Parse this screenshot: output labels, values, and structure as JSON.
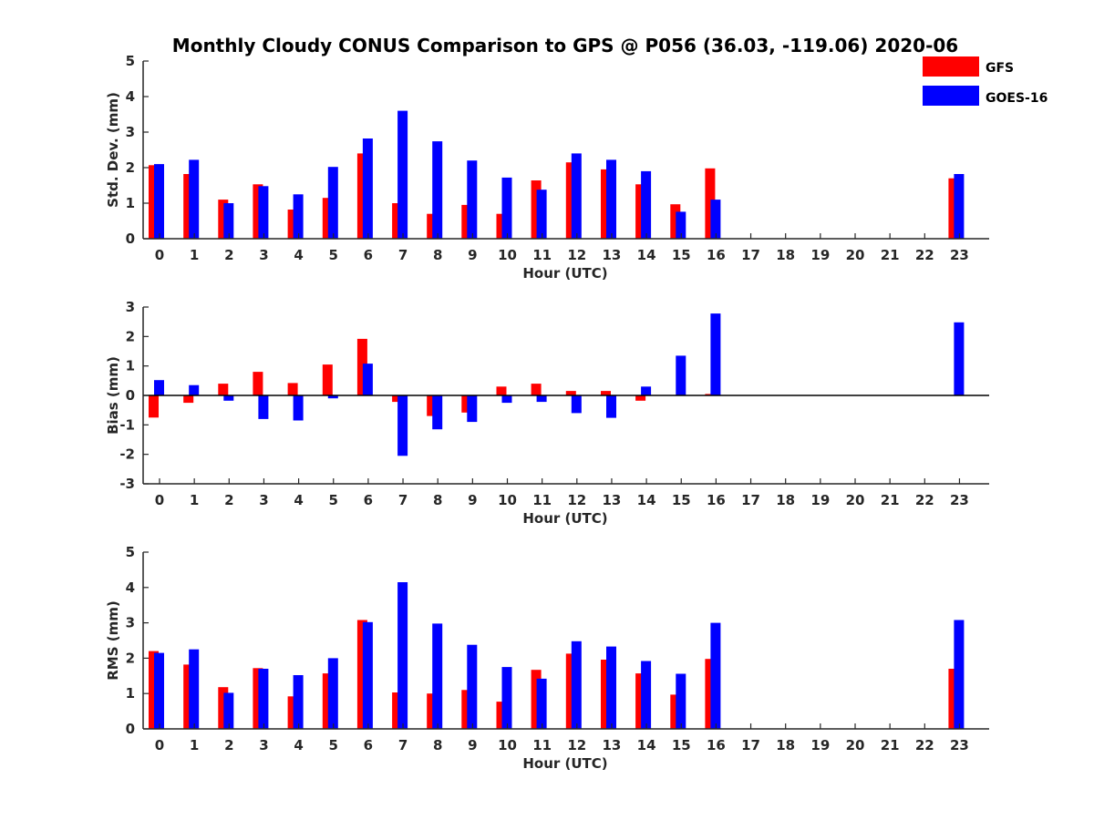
{
  "title": "Monthly Cloudy CONUS Comparison to GPS @ P056 (36.03, -119.06) 2020-06",
  "legend": [
    {
      "name": "GFS",
      "color": "#ff0000"
    },
    {
      "name": "GOES-16",
      "color": "#0000ff"
    }
  ],
  "chart_data": [
    {
      "type": "bar",
      "categories": [
        "0",
        "1",
        "2",
        "3",
        "4",
        "5",
        "6",
        "7",
        "8",
        "9",
        "10",
        "11",
        "12",
        "13",
        "14",
        "15",
        "16",
        "17",
        "18",
        "19",
        "20",
        "21",
        "22",
        "23"
      ],
      "xlabel": "Hour (UTC)",
      "ylabel": "Std. Dev. (mm)",
      "ylim": [
        0,
        5
      ],
      "yticks": [
        "0",
        "1",
        "2",
        "3",
        "4",
        "5"
      ],
      "legend_position": "top-right",
      "series": [
        {
          "name": "GFS",
          "color": "#ff0000",
          "values": [
            2.07,
            1.82,
            1.1,
            1.53,
            0.82,
            1.15,
            2.4,
            1.0,
            0.7,
            0.95,
            0.7,
            1.64,
            2.15,
            1.95,
            1.53,
            0.97,
            1.98,
            null,
            null,
            null,
            null,
            null,
            null,
            1.7
          ]
        },
        {
          "name": "GOES-16",
          "color": "#0000ff",
          "values": [
            2.1,
            2.22,
            1.0,
            1.48,
            1.25,
            2.02,
            2.82,
            3.6,
            2.74,
            2.2,
            1.72,
            1.38,
            2.4,
            2.22,
            1.9,
            0.76,
            1.1,
            null,
            null,
            null,
            null,
            null,
            null,
            1.82
          ]
        }
      ]
    },
    {
      "type": "bar",
      "categories": [
        "0",
        "1",
        "2",
        "3",
        "4",
        "5",
        "6",
        "7",
        "8",
        "9",
        "10",
        "11",
        "12",
        "13",
        "14",
        "15",
        "16",
        "17",
        "18",
        "19",
        "20",
        "21",
        "22",
        "23"
      ],
      "xlabel": "Hour (UTC)",
      "ylabel": "Bias (mm)",
      "ylim": [
        -3,
        3
      ],
      "yticks": [
        "-3",
        "-2",
        "-1",
        "0",
        "1",
        "2",
        "3"
      ],
      "series": [
        {
          "name": "GFS",
          "color": "#ff0000",
          "values": [
            -0.75,
            -0.25,
            0.4,
            0.8,
            0.42,
            1.05,
            1.92,
            -0.22,
            -0.7,
            -0.58,
            0.3,
            0.4,
            0.15,
            0.15,
            -0.18,
            null,
            0.05,
            null,
            null,
            null,
            null,
            null,
            null,
            null
          ]
        },
        {
          "name": "GOES-16",
          "color": "#0000ff",
          "values": [
            0.52,
            0.35,
            -0.18,
            -0.8,
            -0.85,
            -0.1,
            1.08,
            -2.05,
            -1.15,
            -0.9,
            -0.25,
            -0.22,
            -0.6,
            -0.76,
            0.3,
            1.35,
            2.78,
            null,
            null,
            null,
            null,
            null,
            null,
            2.48
          ]
        }
      ]
    },
    {
      "type": "bar",
      "categories": [
        "0",
        "1",
        "2",
        "3",
        "4",
        "5",
        "6",
        "7",
        "8",
        "9",
        "10",
        "11",
        "12",
        "13",
        "14",
        "15",
        "16",
        "17",
        "18",
        "19",
        "20",
        "21",
        "22",
        "23"
      ],
      "xlabel": "Hour (UTC)",
      "ylabel": "RMS (mm)",
      "ylim": [
        0,
        5
      ],
      "yticks": [
        "0",
        "1",
        "2",
        "3",
        "4",
        "5"
      ],
      "series": [
        {
          "name": "GFS",
          "color": "#ff0000",
          "values": [
            2.2,
            1.82,
            1.18,
            1.72,
            0.92,
            1.57,
            3.08,
            1.03,
            1.0,
            1.1,
            0.77,
            1.67,
            2.13,
            1.96,
            1.57,
            0.97,
            1.98,
            null,
            null,
            null,
            null,
            null,
            null,
            1.7
          ]
        },
        {
          "name": "GOES-16",
          "color": "#0000ff",
          "values": [
            2.15,
            2.25,
            1.02,
            1.7,
            1.52,
            2.0,
            3.02,
            4.15,
            2.98,
            2.38,
            1.75,
            1.42,
            2.48,
            2.33,
            1.92,
            1.56,
            3.0,
            null,
            null,
            null,
            null,
            null,
            null,
            3.08
          ]
        }
      ]
    }
  ]
}
